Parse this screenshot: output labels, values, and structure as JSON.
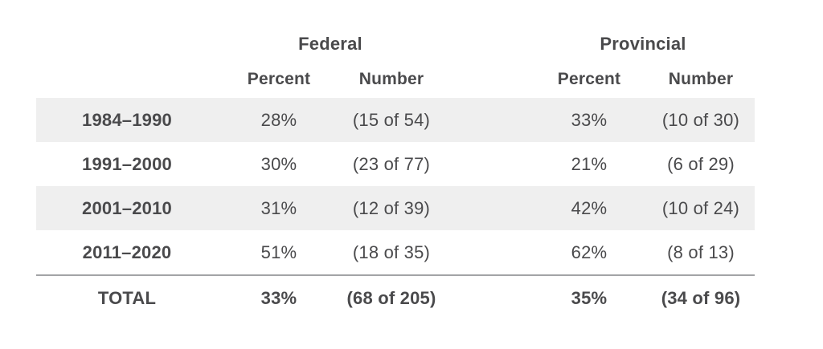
{
  "chart_data": {
    "type": "table",
    "title": "",
    "group_headers": [
      "Federal",
      "Provincial"
    ],
    "sub_headers": [
      "Percent",
      "Number",
      "Percent",
      "Number"
    ],
    "rows": [
      [
        "1984–1990",
        "28%",
        "(15 of 54)",
        "33%",
        "(10 of 30)"
      ],
      [
        "1991–2000",
        "30%",
        "(23 of 77)",
        "21%",
        "(6 of 29)"
      ],
      [
        "2001–2010",
        "31%",
        "(12 of 39)",
        "42%",
        "(10 of 24)"
      ],
      [
        "2011–2020",
        "51%",
        "(18 of 35)",
        "62%",
        "(8 of 13)"
      ]
    ],
    "total_row": [
      "TOTAL",
      "33%",
      "(68 of 205)",
      "35%",
      "(34 of 96)"
    ],
    "layout": {
      "striped_row_indexes": [
        0,
        2
      ],
      "separator_above_total": true,
      "grid": "off"
    }
  },
  "colors": {
    "text": "#4a4a4c",
    "row_stripe": "#efefef",
    "rule": "#a3a4a6",
    "background": "#ffffff"
  }
}
